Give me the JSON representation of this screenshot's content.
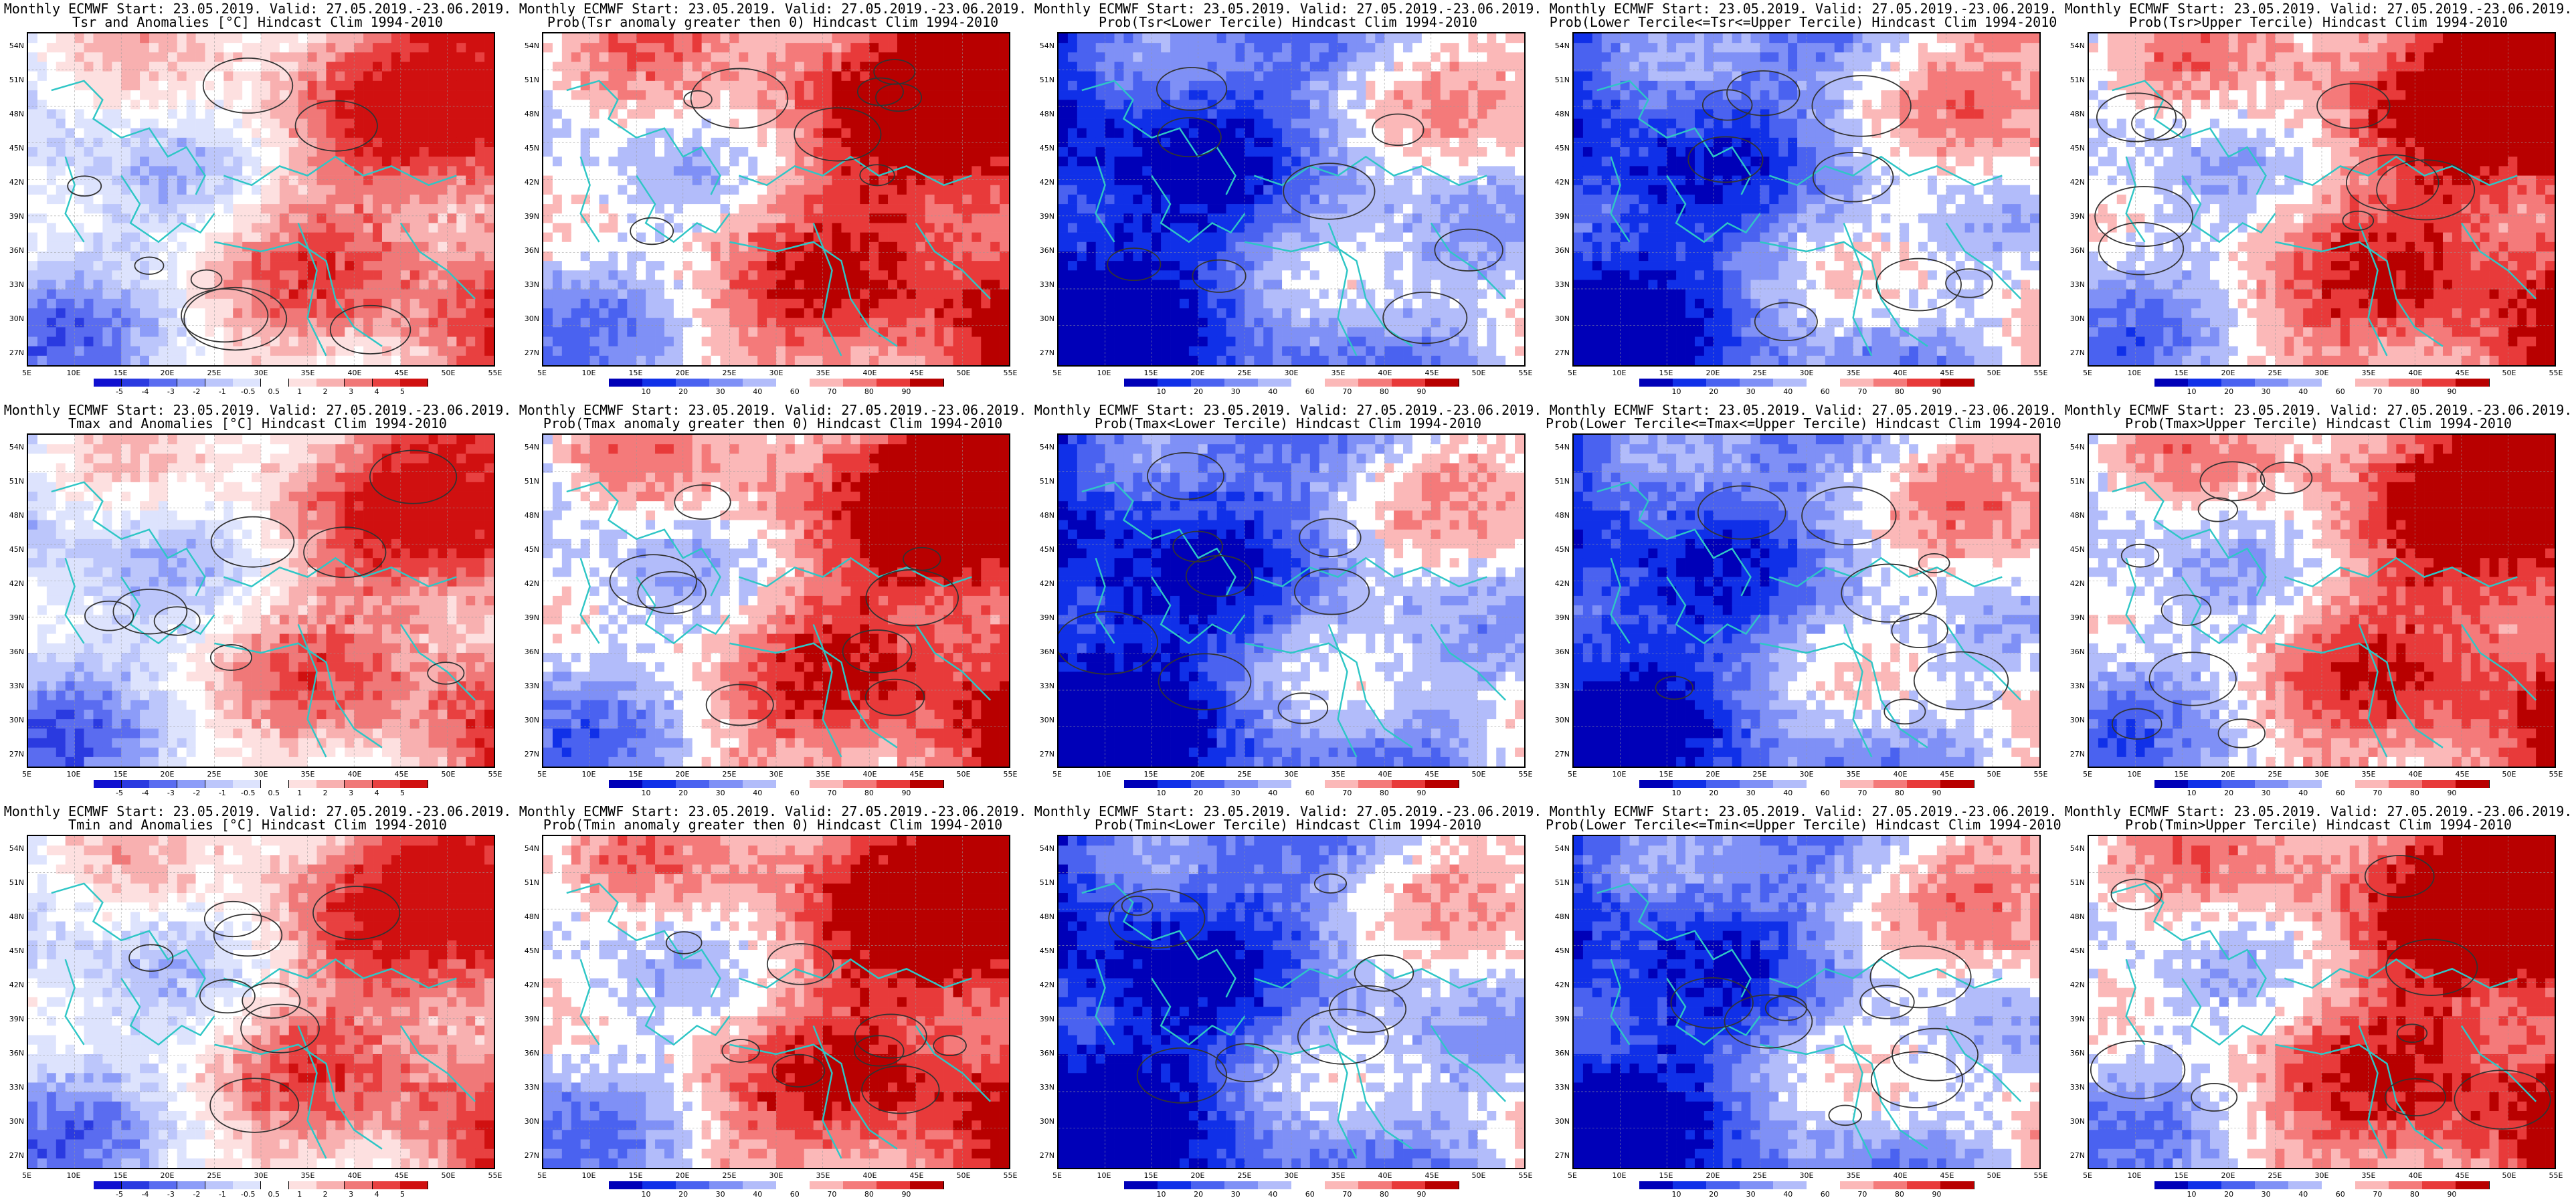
{
  "colors": {
    "anomaly_scale": [
      "#1010d0",
      "#2a3ae0",
      "#5a6cf0",
      "#8c9cf8",
      "#bcc6fb",
      "#dde3fd",
      "#ffffff",
      "#fde0e0",
      "#f8b0b0",
      "#f07878",
      "#e84040",
      "#d01010"
    ],
    "prob_scale": [
      "#0000b8",
      "#1030e8",
      "#4a62f0",
      "#7f90f6",
      "#b2bcfa",
      "#ffffff",
      "#fbb8b8",
      "#f47a7a",
      "#e83a3a",
      "#b80000"
    ],
    "coast_line": "#2fc6c6",
    "contour_line": "#333333"
  },
  "panels": [
    {
      "id": "r1c1",
      "title1": "Monthly ECMWF Start: 23.05.2019. Valid: 27.05.2019.-23.06.2019.",
      "title2": "Tsr and Anomalies [°C] Hindcast Clim 1994-2010",
      "scale": "anomaly",
      "bias": 0.35
    },
    {
      "id": "r1c2",
      "title1": "Monthly ECMWF Start: 23.05.2019. Valid: 27.05.2019.-23.06.2019.",
      "title2": "Prob(Tsr anomaly greater then 0) Hindcast Clim 1994-2010",
      "scale": "prob",
      "bias": 0.55
    },
    {
      "id": "r1c3",
      "title1": "Monthly ECMWF Start: 23.05.2019. Valid: 27.05.2019.-23.06.2019.",
      "title2": "Prob(Tsr<Lower Tercile) Hindcast Clim 1994-2010",
      "scale": "prob",
      "bias": -0.6
    },
    {
      "id": "r1c4",
      "title1": "Monthly ECMWF Start: 23.05.2019. Valid: 27.05.2019.-23.06.2019.",
      "title2": "Prob(Lower Tercile<=Tsr<=Upper Tercile) Hindcast Clim 1994-2010",
      "scale": "prob",
      "bias": -0.45
    },
    {
      "id": "r1c5",
      "title1": "Monthly ECMWF Start: 23.05.2019. Valid: 27.05.2019.-23.06.2019.",
      "title2": "Prob(Tsr>Upper Tercile) Hindcast Clim 1994-2010",
      "scale": "prob",
      "bias": 0.5
    },
    {
      "id": "r2c1",
      "title1": "Monthly ECMWF Start: 23.05.2019. Valid: 27.05.2019.-23.06.2019.",
      "title2": "Tmax and Anomalies [°C] Hindcast Clim 1994-2010",
      "scale": "anomaly",
      "bias": 0.3
    },
    {
      "id": "r2c2",
      "title1": "Monthly ECMWF Start: 23.05.2019. Valid: 27.05.2019.-23.06.2019.",
      "title2": "Prob(Tmax anomaly greater then 0) Hindcast Clim 1994-2010",
      "scale": "prob",
      "bias": 0.5
    },
    {
      "id": "r2c3",
      "title1": "Monthly ECMWF Start: 23.05.2019. Valid: 27.05.2019.-23.06.2019.",
      "title2": "Prob(Tmax<Lower Tercile) Hindcast Clim 1994-2010",
      "scale": "prob",
      "bias": -0.6
    },
    {
      "id": "r2c4",
      "title1": "Monthly ECMWF Start: 23.05.2019. Valid: 27.05.2019.-23.06.2019.",
      "title2": "Prob(Lower Tercile<=Tmax<=Upper Tercile) Hindcast Clim 1994-2010",
      "scale": "prob",
      "bias": -0.45
    },
    {
      "id": "r2c5",
      "title1": "Monthly ECMWF Start: 23.05.2019. Valid: 27.05.2019.-23.06.2019.",
      "title2": "Prob(Tmax>Upper Tercile) Hindcast Clim 1994-2010",
      "scale": "prob",
      "bias": 0.45
    },
    {
      "id": "r3c1",
      "title1": "Monthly ECMWF Start: 23.05.2019. Valid: 27.05.2019.-23.06.2019.",
      "title2": "Tmin and Anomalies [°C] Hindcast Clim 1994-2010",
      "scale": "anomaly",
      "bias": 0.35
    },
    {
      "id": "r3c2",
      "title1": "Monthly ECMWF Start: 23.05.2019. Valid: 27.05.2019.-23.06.2019.",
      "title2": "Prob(Tmin anomaly greater then 0) Hindcast Clim 1994-2010",
      "scale": "prob",
      "bias": 0.55
    },
    {
      "id": "r3c3",
      "title1": "Monthly ECMWF Start: 23.05.2019. Valid: 27.05.2019.-23.06.2019.",
      "title2": "Prob(Tmin<Lower Tercile) Hindcast Clim 1994-2010",
      "scale": "prob",
      "bias": -0.6
    },
    {
      "id": "r3c4",
      "title1": "Monthly ECMWF Start: 23.05.2019. Valid: 27.05.2019.-23.06.2019.",
      "title2": "Prob(Lower Tercile<=Tmin<=Upper Tercile) Hindcast Clim 1994-2010",
      "scale": "prob",
      "bias": -0.45
    },
    {
      "id": "r3c5",
      "title1": "Monthly ECMWF Start: 23.05.2019. Valid: 27.05.2019.-23.06.2019.",
      "title2": "Prob(Tmin>Upper Tercile) Hindcast Clim 1994-2010",
      "scale": "prob",
      "bias": 0.55
    }
  ],
  "axes": {
    "lat_labels": [
      "54N",
      "51N",
      "48N",
      "45N",
      "42N",
      "39N",
      "36N",
      "33N",
      "30N",
      "27N"
    ],
    "lon_labels": [
      "5E",
      "10E",
      "15E",
      "20E",
      "25E",
      "30E",
      "35E",
      "40E",
      "45E",
      "50E",
      "55E"
    ]
  },
  "colorbars": {
    "anomaly_ticks": [
      "-5",
      "-4",
      "-3",
      "-2",
      "-1",
      "-0.5",
      "0.5",
      "1",
      "2",
      "3",
      "4",
      "5"
    ],
    "prob_ticks": [
      "10",
      "20",
      "30",
      "40",
      "60",
      "70",
      "80",
      "90"
    ]
  }
}
